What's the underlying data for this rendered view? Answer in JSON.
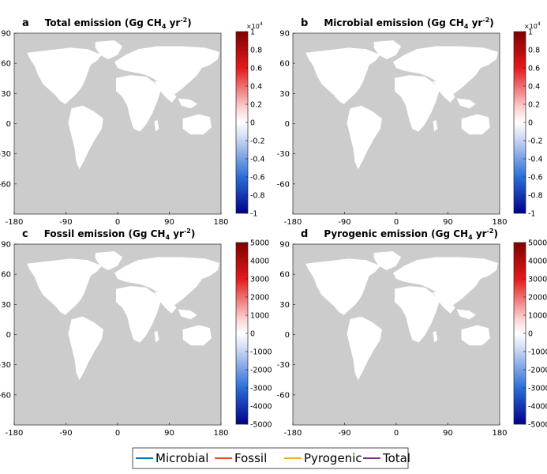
{
  "panels": [
    {
      "letter": "a",
      "title": "Total emission (Gg CH",
      "title_sub": "4",
      "title_mid": " yr",
      "title_sup": "-2",
      "title_end": ")",
      "colorbar": {
        "exponent_label": "×10",
        "exponent_power": "4",
        "ticks": [
          "1",
          "0.8",
          "0.6",
          "0.4",
          "0.2",
          "0",
          "-0.2",
          "-0.4",
          "-0.6",
          "-0.8",
          "-1"
        ]
      },
      "x_ticks": [
        "-180",
        "-90",
        "0",
        "90",
        "180"
      ],
      "y_ticks": [
        "90",
        "60",
        "30",
        "0",
        "-30",
        "-60"
      ]
    },
    {
      "letter": "b",
      "title": "Microbial emission (Gg CH",
      "title_sub": "4",
      "title_mid": " yr",
      "title_sup": "-2",
      "title_end": ")",
      "colorbar": {
        "exponent_label": "×10",
        "exponent_power": "4",
        "ticks": [
          "1",
          "0.8",
          "0.6",
          "0.4",
          "0.2",
          "0",
          "-0.2",
          "-0.4",
          "-0.6",
          "-0.8",
          "-1"
        ]
      },
      "x_ticks": [
        "-180",
        "-90",
        "0",
        "90",
        "180"
      ],
      "y_ticks": [
        "90",
        "60",
        "30",
        "0",
        "-30",
        "-60"
      ]
    },
    {
      "letter": "c",
      "title": "Fossil emission (Gg CH",
      "title_sub": "4",
      "title_mid": " yr",
      "title_sup": "-2",
      "title_end": ")",
      "colorbar": {
        "exponent_label": "",
        "exponent_power": "",
        "ticks": [
          "5000",
          "4000",
          "3000",
          "2000",
          "1000",
          "0",
          "-1000",
          "-2000",
          "-3000",
          "-4000",
          "-5000"
        ]
      },
      "x_ticks": [
        "-180",
        "-90",
        "0",
        "90",
        "180"
      ],
      "y_ticks": [
        "90",
        "60",
        "30",
        "0",
        "-30",
        "-60"
      ]
    },
    {
      "letter": "d",
      "title": "Pyrogenic emission (Gg CH",
      "title_sub": "4",
      "title_mid": " yr",
      "title_sup": "-2",
      "title_end": ")",
      "colorbar": {
        "exponent_label": "",
        "exponent_power": "",
        "ticks": [
          "5000",
          "4000",
          "3000",
          "2000",
          "1000",
          "0",
          "-1000",
          "-2000",
          "-3000",
          "-4000",
          "-5000"
        ]
      },
      "x_ticks": [
        "-180",
        "-90",
        "0",
        "90",
        "180"
      ],
      "y_ticks": [
        "90",
        "60",
        "30",
        "0",
        "-30",
        "-60"
      ]
    }
  ],
  "legend": [
    {
      "label": "Microbial",
      "color": "#0072BD"
    },
    {
      "label": "Fossil",
      "color": "#D95319"
    },
    {
      "label": "Pyrogenic",
      "color": "#EDB120"
    },
    {
      "label": "Total",
      "color": "#7E2F8E"
    }
  ],
  "colors": {
    "ocean": "#cccccc",
    "land_neutral": "#ffffff",
    "positive_max": "#7f0000",
    "negative_max": "#00008b"
  }
}
